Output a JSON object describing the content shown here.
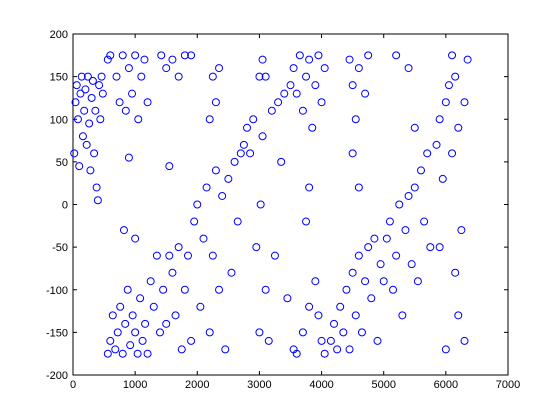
{
  "chart_data": {
    "type": "scatter",
    "color": "#0000ff",
    "x": [
      20,
      40,
      60,
      80,
      100,
      120,
      140,
      160,
      180,
      200,
      220,
      240,
      260,
      280,
      300,
      320,
      340,
      360,
      380,
      400,
      420,
      440,
      460,
      480,
      560,
      600,
      640,
      680,
      720,
      760,
      800,
      840,
      880,
      920,
      960,
      1000,
      1040,
      1080,
      1120,
      1160,
      1200,
      560,
      600,
      700,
      750,
      800,
      850,
      900,
      950,
      1000,
      1050,
      1100,
      1150,
      1200,
      900,
      820,
      1000,
      1250,
      1300,
      1350,
      1400,
      1450,
      1500,
      1550,
      1600,
      1650,
      1700,
      1750,
      1800,
      1850,
      1900,
      1950,
      1420,
      1500,
      1600,
      1700,
      1800,
      1900,
      1550,
      2000,
      2050,
      2100,
      2150,
      2200,
      2250,
      2300,
      2350,
      2400,
      2450,
      2500,
      2550,
      2600,
      2650,
      2700,
      2200,
      2250,
      2300,
      2350,
      2750,
      2800,
      2850,
      2900,
      2950,
      3000,
      3000,
      3020,
      3050,
      3100,
      3150,
      3200,
      3250,
      3300,
      3350,
      3400,
      3450,
      3500,
      3050,
      3100,
      3550,
      3600,
      3650,
      3700,
      3750,
      3800,
      3850,
      3900,
      3950,
      4000,
      4050,
      3550,
      3600,
      3700,
      3800,
      3900,
      3950,
      4000,
      4050,
      3750,
      3800,
      4150,
      4200,
      4250,
      4300,
      4350,
      4400,
      4450,
      4500,
      4550,
      4600,
      4650,
      4700,
      4750,
      4800,
      4850,
      4900,
      4950,
      4450,
      4500,
      4550,
      4600,
      4700,
      4750,
      4500,
      4600,
      5000,
      5050,
      5100,
      5150,
      5200,
      5250,
      5300,
      5350,
      5400,
      5450,
      5500,
      5550,
      5600,
      5650,
      5700,
      5750,
      5200,
      5400,
      5500,
      5850,
      5900,
      5950,
      6000,
      6050,
      6100,
      6150,
      6200,
      6250,
      6300,
      6350,
      6100,
      6200,
      6300,
      6000,
      5900,
      6150
    ],
    "values": [
      60,
      120,
      140,
      100,
      45,
      130,
      150,
      80,
      110,
      135,
      70,
      150,
      95,
      40,
      125,
      145,
      60,
      110,
      20,
      5,
      140,
      100,
      150,
      130,
      -175,
      -160,
      -130,
      -170,
      -150,
      -120,
      -175,
      -140,
      -100,
      -165,
      -130,
      -150,
      -175,
      -110,
      -160,
      -140,
      -175,
      170,
      175,
      150,
      120,
      175,
      110,
      160,
      130,
      175,
      100,
      150,
      170,
      120,
      55,
      -30,
      -40,
      -90,
      -120,
      -60,
      -150,
      -100,
      -140,
      -60,
      -80,
      -130,
      -50,
      -170,
      -100,
      -60,
      -160,
      -20,
      175,
      160,
      170,
      150,
      175,
      175,
      45,
      0,
      -120,
      -40,
      20,
      -150,
      -60,
      40,
      -100,
      10,
      -170,
      30,
      -80,
      50,
      -20,
      60,
      100,
      150,
      120,
      160,
      70,
      90,
      60,
      100,
      -50,
      150,
      -150,
      0,
      80,
      -100,
      -160,
      110,
      -60,
      120,
      50,
      130,
      -110,
      140,
      170,
      150,
      160,
      130,
      175,
      110,
      150,
      170,
      90,
      140,
      175,
      120,
      160,
      -170,
      -175,
      -150,
      -120,
      -90,
      -130,
      -160,
      -175,
      -20,
      20,
      -160,
      -140,
      -170,
      -120,
      -150,
      -100,
      -170,
      -80,
      -130,
      -60,
      -150,
      -90,
      -50,
      -110,
      -40,
      -160,
      -70,
      170,
      140,
      100,
      160,
      130,
      175,
      60,
      20,
      -90,
      -40,
      -20,
      -100,
      -60,
      0,
      -130,
      -30,
      10,
      -70,
      20,
      -90,
      40,
      -20,
      60,
      -50,
      175,
      160,
      90,
      70,
      100,
      30,
      120,
      140,
      60,
      150,
      90,
      -30,
      120,
      170,
      175,
      -130,
      -160,
      -170,
      -50,
      -80
    ],
    "xlim": [
      0,
      7000
    ],
    "xticks": [
      0,
      1000,
      2000,
      3000,
      4000,
      5000,
      6000,
      7000
    ],
    "ylim": [
      -200,
      200
    ],
    "yticks": [
      -200,
      -150,
      -100,
      -50,
      0,
      50,
      100,
      150,
      200
    ]
  }
}
